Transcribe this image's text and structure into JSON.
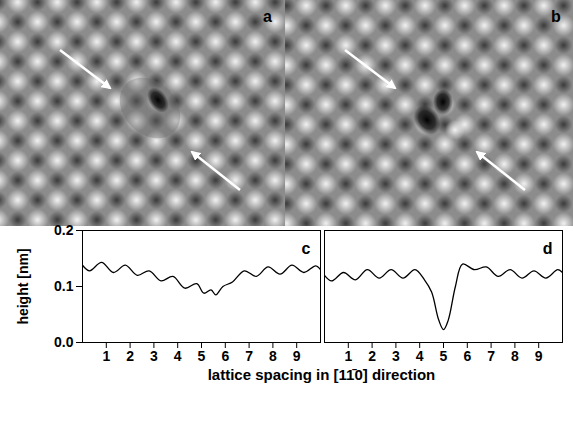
{
  "images": [
    {
      "label": "a"
    },
    {
      "label": "b"
    }
  ],
  "chart_data": [
    {
      "type": "line",
      "label": "c",
      "ylabel": "height [nm]",
      "xlabel": "lattice spacing in [11̄0] direction",
      "xlim": [
        0,
        10
      ],
      "xticks": [
        1,
        2,
        3,
        4,
        5,
        6,
        7,
        8,
        9
      ],
      "ylim": [
        0,
        0.2
      ],
      "yticks": [
        {
          "value": 0,
          "label": "0.0"
        },
        {
          "value": 0.1,
          "label": "0.1"
        },
        {
          "value": 0.2,
          "label": "0.2"
        }
      ],
      "color": "#000000",
      "x": [
        0,
        0.3,
        0.8,
        1.3,
        1.8,
        2.3,
        2.8,
        3.3,
        3.8,
        4.3,
        4.8,
        5.1,
        5.4,
        5.6,
        5.9,
        6.3,
        6.8,
        7.3,
        7.8,
        8.3,
        8.8,
        9.3,
        9.8,
        10
      ],
      "values": [
        0.138,
        0.128,
        0.143,
        0.125,
        0.138,
        0.12,
        0.128,
        0.11,
        0.118,
        0.097,
        0.105,
        0.088,
        0.094,
        0.085,
        0.1,
        0.108,
        0.128,
        0.118,
        0.135,
        0.122,
        0.138,
        0.125,
        0.137,
        0.13
      ]
    },
    {
      "type": "line",
      "label": "d",
      "tick_labels": "x",
      "xlim": [
        0,
        10
      ],
      "xticks": [
        1,
        2,
        3,
        4,
        5,
        6,
        7,
        8,
        9
      ],
      "ylim": [
        0,
        0.2
      ],
      "color": "#000000",
      "x": [
        0,
        0.3,
        0.8,
        1.3,
        1.8,
        2.3,
        2.8,
        3.3,
        3.8,
        4.2,
        4.5,
        4.8,
        5.0,
        5.2,
        5.5,
        5.8,
        6.3,
        6.8,
        7.3,
        7.8,
        8.3,
        8.8,
        9.3,
        9.8,
        10
      ],
      "values": [
        0.12,
        0.11,
        0.125,
        0.112,
        0.13,
        0.115,
        0.13,
        0.115,
        0.13,
        0.112,
        0.09,
        0.04,
        0.023,
        0.04,
        0.1,
        0.14,
        0.13,
        0.135,
        0.118,
        0.13,
        0.115,
        0.128,
        0.115,
        0.13,
        0.125
      ]
    }
  ]
}
